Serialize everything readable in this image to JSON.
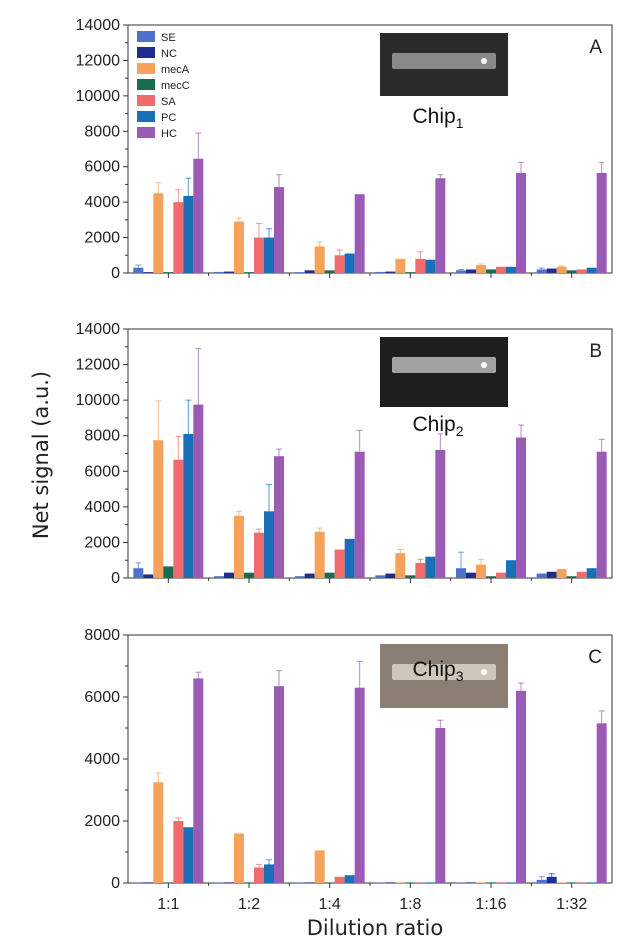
{
  "figure": {
    "ylabel": "Net signal (a.u.)",
    "xlabel": "Dilution ratio"
  },
  "chart_data": [
    {
      "type": "bar",
      "panel": "A",
      "chip_label": "Chip",
      "chip_sub": "1",
      "ylim": [
        0,
        14000
      ],
      "yticks": [
        "0",
        "2000",
        "4000",
        "6000",
        "8000",
        "10000",
        "12000",
        "14000"
      ],
      "categories": [
        "1:1",
        "1:2",
        "1:4",
        "1:8",
        "1:16",
        "1:32"
      ],
      "legend_position": "top-left",
      "series": [
        {
          "name": "SE",
          "color": "#4c72c9",
          "values": [
            300,
            60,
            50,
            60,
            150,
            200
          ],
          "errors": [
            150,
            0,
            0,
            0,
            50,
            80
          ]
        },
        {
          "name": "NC",
          "color": "#1f2d8c",
          "values": [
            50,
            80,
            150,
            80,
            200,
            250
          ],
          "errors": [
            0,
            0,
            0,
            0,
            0,
            0
          ]
        },
        {
          "name": "mecA",
          "color": "#f5a35c",
          "values": [
            4500,
            2900,
            1500,
            800,
            450,
            350
          ],
          "errors": [
            600,
            200,
            250,
            0,
            60,
            50
          ]
        },
        {
          "name": "mecC",
          "color": "#1a6b4f",
          "values": [
            50,
            50,
            150,
            50,
            200,
            150
          ],
          "errors": [
            0,
            0,
            0,
            0,
            0,
            0
          ]
        },
        {
          "name": "SA",
          "color": "#f06b6b",
          "values": [
            4000,
            2000,
            1000,
            800,
            350,
            200
          ],
          "errors": [
            700,
            800,
            300,
            400,
            0,
            0
          ]
        },
        {
          "name": "PC",
          "color": "#1a6fb5",
          "values": [
            4350,
            2000,
            1100,
            750,
            350,
            300
          ],
          "errors": [
            1000,
            500,
            0,
            0,
            0,
            0
          ]
        },
        {
          "name": "HC",
          "color": "#9a5bb5",
          "values": [
            6450,
            4850,
            4450,
            5350,
            5650,
            5650
          ],
          "errors": [
            1450,
            700,
            0,
            200,
            600,
            600
          ]
        }
      ]
    },
    {
      "type": "bar",
      "panel": "B",
      "chip_label": "Chip",
      "chip_sub": "2",
      "ylim": [
        0,
        14000
      ],
      "yticks": [
        "0",
        "2000",
        "4000",
        "6000",
        "8000",
        "10000",
        "12000",
        "14000"
      ],
      "categories": [
        "1:1",
        "1:2",
        "1:4",
        "1:8",
        "1:16",
        "1:32"
      ],
      "series": [
        {
          "name": "SE",
          "color": "#4c72c9",
          "values": [
            550,
            100,
            100,
            150,
            550,
            250
          ],
          "errors": [
            300,
            0,
            0,
            0,
            900,
            0
          ]
        },
        {
          "name": "NC",
          "color": "#1f2d8c",
          "values": [
            200,
            300,
            250,
            250,
            300,
            350
          ],
          "errors": [
            0,
            0,
            0,
            0,
            0,
            0
          ]
        },
        {
          "name": "mecA",
          "color": "#f5a35c",
          "values": [
            7750,
            3500,
            2600,
            1400,
            750,
            500
          ],
          "errors": [
            2200,
            250,
            200,
            200,
            300,
            0
          ]
        },
        {
          "name": "mecC",
          "color": "#1a6b4f",
          "values": [
            650,
            300,
            300,
            150,
            100,
            100
          ],
          "errors": [
            0,
            0,
            0,
            0,
            0,
            0
          ]
        },
        {
          "name": "SA",
          "color": "#f06b6b",
          "values": [
            6650,
            2550,
            1600,
            850,
            300,
            350
          ],
          "errors": [
            1300,
            200,
            0,
            200,
            0,
            0
          ]
        },
        {
          "name": "PC",
          "color": "#1a6fb5",
          "values": [
            8100,
            3750,
            2200,
            1200,
            1000,
            550
          ],
          "errors": [
            1900,
            1500,
            0,
            0,
            0,
            0
          ]
        },
        {
          "name": "HC",
          "color": "#9a5bb5",
          "values": [
            9750,
            6850,
            7100,
            7200,
            7900,
            7100
          ],
          "errors": [
            3150,
            400,
            1200,
            900,
            700,
            700
          ]
        }
      ]
    },
    {
      "type": "bar",
      "panel": "C",
      "chip_label": "Chip",
      "chip_sub": "3",
      "ylim": [
        0,
        8000
      ],
      "yticks": [
        "0",
        "2000",
        "4000",
        "6000",
        "8000"
      ],
      "categories": [
        "1:1",
        "1:2",
        "1:4",
        "1:8",
        "1:16",
        "1:32"
      ],
      "series": [
        {
          "name": "SE",
          "color": "#4c72c9",
          "values": [
            20,
            20,
            20,
            20,
            20,
            100
          ],
          "errors": [
            0,
            0,
            0,
            0,
            0,
            100
          ]
        },
        {
          "name": "NC",
          "color": "#1f2d8c",
          "values": [
            20,
            20,
            20,
            20,
            20,
            200
          ],
          "errors": [
            0,
            0,
            0,
            0,
            0,
            100
          ]
        },
        {
          "name": "mecA",
          "color": "#f5a35c",
          "values": [
            3250,
            1600,
            1050,
            20,
            20,
            20
          ],
          "errors": [
            300,
            0,
            0,
            0,
            0,
            0
          ]
        },
        {
          "name": "mecC",
          "color": "#1a6b4f",
          "values": [
            20,
            20,
            20,
            20,
            20,
            20
          ],
          "errors": [
            0,
            0,
            0,
            0,
            0,
            0
          ]
        },
        {
          "name": "SA",
          "color": "#f06b6b",
          "values": [
            2000,
            500,
            200,
            20,
            20,
            20
          ],
          "errors": [
            100,
            100,
            0,
            0,
            0,
            0
          ]
        },
        {
          "name": "PC",
          "color": "#1a6fb5",
          "values": [
            1800,
            600,
            250,
            20,
            20,
            20
          ],
          "errors": [
            0,
            150,
            0,
            0,
            0,
            0
          ]
        },
        {
          "name": "HC",
          "color": "#9a5bb5",
          "values": [
            6600,
            6350,
            6300,
            5000,
            6200,
            5150
          ],
          "errors": [
            200,
            500,
            850,
            250,
            250,
            400
          ]
        }
      ]
    }
  ]
}
